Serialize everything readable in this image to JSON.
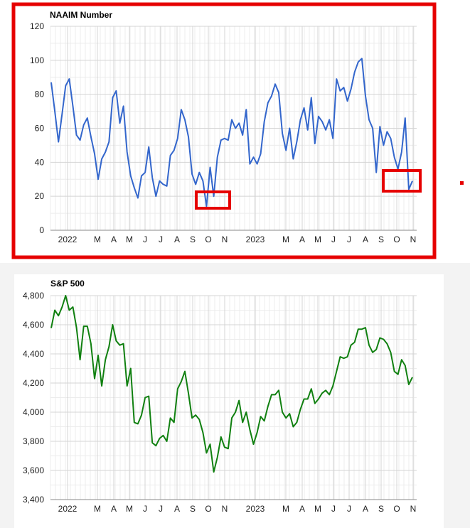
{
  "colors": {
    "naaim_line": "#3366cc",
    "sp500_line": "#108010",
    "highlight": "#e60000"
  },
  "chart_data": [
    {
      "type": "line",
      "title": "NAAIM Number",
      "ylim": [
        0,
        120
      ],
      "y_ticks": [
        "0",
        "20",
        "40",
        "60",
        "80",
        "100",
        "120"
      ],
      "x_tick_labels": [
        "2022",
        "M",
        "A",
        "M",
        "J",
        "J",
        "A",
        "S",
        "O",
        "N",
        "2023",
        "M",
        "A",
        "M",
        "J",
        "J",
        "A",
        "S",
        "O",
        "N"
      ],
      "grid": true,
      "series": [
        {
          "values": [
            87,
            70,
            52,
            68,
            85,
            89,
            73,
            56,
            53,
            62,
            66,
            55,
            45,
            30,
            42,
            46,
            52,
            78,
            82,
            63,
            73,
            46,
            32,
            25,
            19,
            32,
            34,
            49,
            31,
            20,
            29,
            27,
            26,
            44,
            47,
            54,
            71,
            65,
            55,
            33,
            27,
            34,
            29,
            14,
            37,
            20,
            43,
            53,
            54,
            53,
            65,
            60,
            63,
            56,
            71,
            39,
            43,
            39,
            45,
            64,
            75,
            79,
            86,
            81,
            57,
            47,
            60,
            42,
            52,
            65,
            72,
            59,
            78,
            51,
            67,
            64,
            59,
            65,
            54,
            89,
            82,
            84,
            76,
            83,
            93,
            99,
            101,
            79,
            65,
            60,
            34,
            61,
            50,
            58,
            54,
            43,
            36,
            46,
            66,
            24,
            29
          ]
        }
      ],
      "highlights": [
        "Oct 2022 low",
        "Oct-Nov 2023 low"
      ]
    },
    {
      "type": "line",
      "title": "S&P 500",
      "ylim": [
        3400,
        4800
      ],
      "y_ticks": [
        "3,400",
        "3,600",
        "3,800",
        "4,000",
        "4,200",
        "4,400",
        "4,600",
        "4,800"
      ],
      "x_tick_labels": [
        "2022",
        "M",
        "A",
        "M",
        "J",
        "J",
        "A",
        "S",
        "O",
        "N",
        "2023",
        "M",
        "A",
        "M",
        "J",
        "J",
        "A",
        "S",
        "O",
        "N"
      ],
      "grid": true,
      "series": [
        {
          "values": [
            4577,
            4700,
            4662,
            4720,
            4800,
            4700,
            4722,
            4580,
            4360,
            4590,
            4590,
            4470,
            4230,
            4390,
            4180,
            4360,
            4450,
            4600,
            4490,
            4460,
            4470,
            4180,
            4300,
            3930,
            3920,
            3980,
            4100,
            4110,
            3790,
            3770,
            3820,
            3840,
            3800,
            3960,
            3930,
            4160,
            4210,
            4280,
            4130,
            3960,
            3980,
            3950,
            3860,
            3720,
            3780,
            3590,
            3690,
            3830,
            3760,
            3750,
            3960,
            4000,
            4080,
            3930,
            4000,
            3880,
            3780,
            3860,
            3970,
            3940,
            4040,
            4120,
            4120,
            4150,
            4000,
            3960,
            3990,
            3900,
            3930,
            4020,
            4090,
            4090,
            4160,
            4060,
            4090,
            4130,
            4150,
            4120,
            4180,
            4280,
            4380,
            4370,
            4380,
            4460,
            4480,
            4570,
            4570,
            4580,
            4460,
            4410,
            4430,
            4510,
            4500,
            4470,
            4410,
            4280,
            4260,
            4360,
            4320,
            4190,
            4240
          ]
        }
      ]
    }
  ]
}
